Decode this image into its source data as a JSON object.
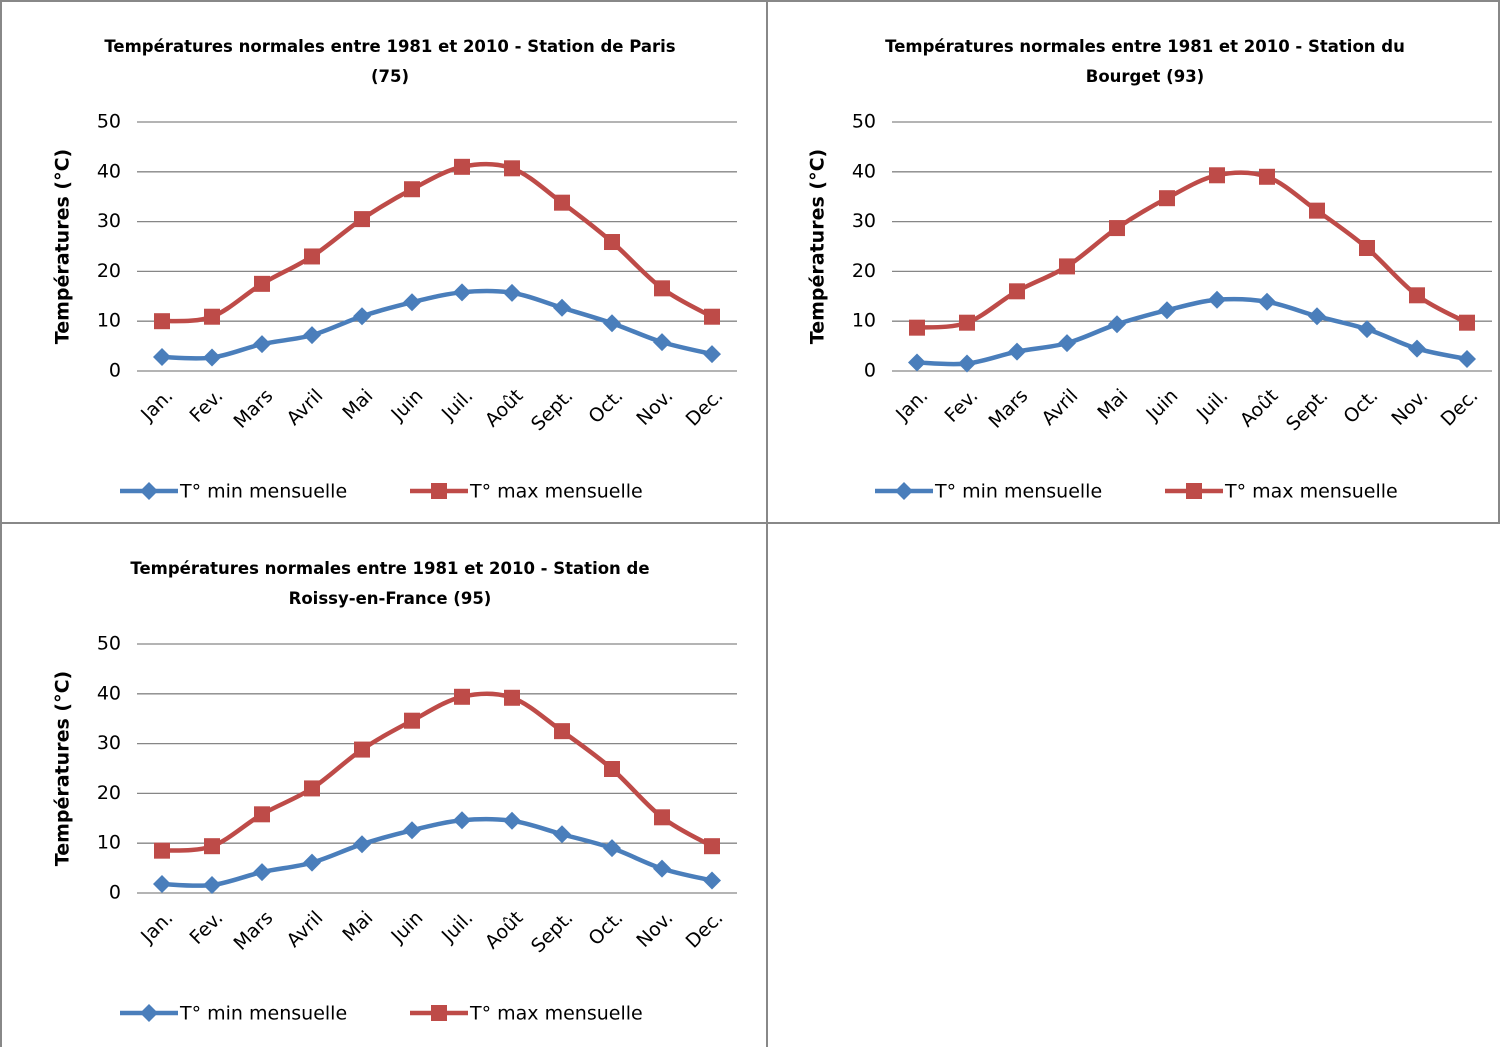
{
  "chart_data": [
    {
      "type": "line",
      "title": "Températures normales entre 1981 et 2010 - Station de Paris (75)",
      "y_label": "Températures (°C)",
      "categories": [
        "Jan.",
        "Fev.",
        "Mars",
        "Avril",
        "Mai",
        "Juin",
        "Juil.",
        "Août",
        "Sept.",
        "Oct.",
        "Nov.",
        "Dec."
      ],
      "series": [
        {
          "name": "T° min mensuelle",
          "color": "#4a7ebb",
          "marker": "diamond",
          "values": [
            2.8,
            2.7,
            5.4,
            7.2,
            11,
            13.8,
            15.8,
            15.7,
            12.7,
            9.6,
            5.8,
            3.4
          ]
        },
        {
          "name": "T° max mensuelle",
          "color": "#be4b48",
          "marker": "square",
          "values": [
            10,
            10.9,
            17.5,
            23,
            30.5,
            36.5,
            41,
            40.7,
            33.8,
            25.9,
            16.6,
            10.9
          ]
        }
      ],
      "ylim": [
        0,
        50
      ],
      "yticks": [
        0,
        10,
        20,
        30,
        40,
        50
      ],
      "grid": true,
      "legend": "bottom"
    },
    {
      "type": "line",
      "title": "Températures normales entre 1981 et 2010 - Station du Bourget (93)",
      "y_label": "Températures (°C)",
      "categories": [
        "Jan.",
        "Fev.",
        "Mars",
        "Avril",
        "Mai",
        "Juin",
        "Juil.",
        "Août",
        "Sept.",
        "Oct.",
        "Nov.",
        "Dec."
      ],
      "series": [
        {
          "name": "T° min mensuelle",
          "color": "#4a7ebb",
          "marker": "diamond",
          "values": [
            1.7,
            1.5,
            3.9,
            5.6,
            9.4,
            12.2,
            14.3,
            13.9,
            11,
            8.4,
            4.5,
            2.4
          ]
        },
        {
          "name": "T° max mensuelle",
          "color": "#be4b48",
          "marker": "square",
          "values": [
            8.7,
            9.7,
            16,
            21,
            28.7,
            34.7,
            39.3,
            39,
            32.2,
            24.7,
            15.2,
            9.7
          ]
        }
      ],
      "ylim": [
        0,
        50
      ],
      "yticks": [
        0,
        10,
        20,
        30,
        40,
        50
      ],
      "grid": true,
      "legend": "bottom"
    },
    {
      "type": "line",
      "title": "Températures normales entre 1981 et 2010 - Station de Roissy-en-France (95)",
      "y_label": "Températures (°C)",
      "categories": [
        "Jan.",
        "Fev.",
        "Mars",
        "Avril",
        "Mai",
        "Juin",
        "Juil.",
        "Août",
        "Sept.",
        "Oct.",
        "Nov.",
        "Dec."
      ],
      "series": [
        {
          "name": "T° min mensuelle",
          "color": "#4a7ebb",
          "marker": "diamond",
          "values": [
            1.8,
            1.6,
            4.2,
            6.1,
            9.8,
            12.6,
            14.6,
            14.5,
            11.8,
            9,
            4.9,
            2.5
          ]
        },
        {
          "name": "T° max mensuelle",
          "color": "#be4b48",
          "marker": "square",
          "values": [
            8.5,
            9.4,
            15.8,
            21,
            28.8,
            34.6,
            39.4,
            39.2,
            32.5,
            24.9,
            15.2,
            9.4
          ]
        }
      ],
      "ylim": [
        0,
        50
      ],
      "yticks": [
        0,
        10,
        20,
        30,
        40,
        50
      ],
      "grid": true,
      "legend": "bottom"
    }
  ]
}
